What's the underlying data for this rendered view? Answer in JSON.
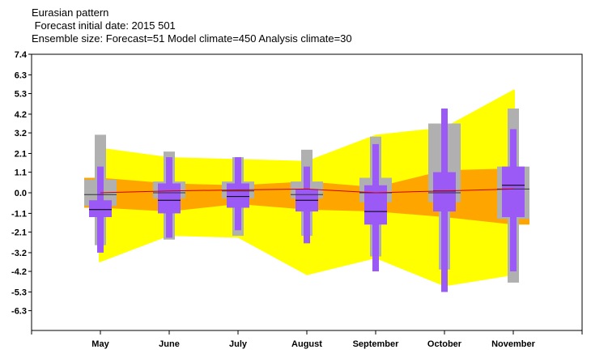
{
  "chart_data": {
    "type": "box",
    "title": "Eurasian pattern",
    "subtitle_lines": [
      " Forecast initial date: 2015 501",
      "Ensemble size: Forecast=51 Model climate=450 Analysis climate=30"
    ],
    "categories": [
      "May",
      "June",
      "July",
      "August",
      "September",
      "October",
      "November"
    ],
    "ytick_labels": [
      "7.4",
      "6.3",
      "5.3",
      "4.2",
      "3.2",
      "2.1",
      "1.1",
      "0.0",
      "-1.1",
      "-2.1",
      "-3.2",
      "-4.2",
      "-5.3",
      "-6.3"
    ],
    "ylim": [
      -7.4,
      7.4
    ],
    "analysis_climate_band": {
      "color": "#ffa500",
      "upper": [
        0.8,
        0.5,
        0.4,
        0.6,
        0.3,
        1.2,
        1.3
      ],
      "lower": [
        -0.8,
        -1.0,
        -0.6,
        -0.9,
        -1.0,
        -1.3,
        -1.7
      ]
    },
    "model_climate_band": {
      "color": "#ffff00",
      "upper": [
        2.4,
        1.9,
        1.8,
        1.7,
        3.1,
        3.5,
        5.5
      ],
      "lower": [
        -3.7,
        -2.3,
        -2.4,
        -4.4,
        -3.5,
        -5.0,
        -4.4
      ]
    },
    "median_line": {
      "color": "#cc0000",
      "values": [
        0.0,
        0.1,
        0.15,
        0.2,
        0.0,
        0.1,
        0.2
      ]
    },
    "model_climate_boxes": {
      "color": "#b0b0b0",
      "whisker_low": [
        -2.8,
        -2.5,
        -2.3,
        -2.3,
        -3.4,
        -4.1,
        -4.8
      ],
      "q1": [
        -0.7,
        -0.3,
        -0.3,
        -0.3,
        -0.5,
        -0.5,
        -1.4
      ],
      "median": [
        -0.1,
        0.0,
        0.1,
        -0.1,
        0.0,
        0.0,
        0.2
      ],
      "q3": [
        0.7,
        0.6,
        0.6,
        0.6,
        0.8,
        3.7,
        1.4
      ],
      "whisker_high": [
        3.1,
        2.2,
        1.9,
        2.3,
        3.0,
        3.7,
        4.5
      ]
    },
    "forecast_boxes": {
      "color": "#9b59f5",
      "whisker_low": [
        -3.2,
        -2.4,
        -2.0,
        -2.7,
        -4.2,
        -5.3,
        -4.2
      ],
      "q1": [
        -1.3,
        -1.1,
        -0.8,
        -1.0,
        -1.7,
        -1.0,
        -1.3
      ],
      "median": [
        -0.9,
        -0.4,
        -0.2,
        -0.4,
        -1.0,
        0.1,
        0.4
      ],
      "q3": [
        -0.4,
        0.5,
        0.5,
        0.2,
        0.4,
        1.1,
        1.4
      ],
      "whisker_high": [
        1.4,
        1.9,
        1.9,
        1.4,
        2.6,
        4.5,
        3.4
      ]
    },
    "grid": false,
    "legend": "none"
  }
}
